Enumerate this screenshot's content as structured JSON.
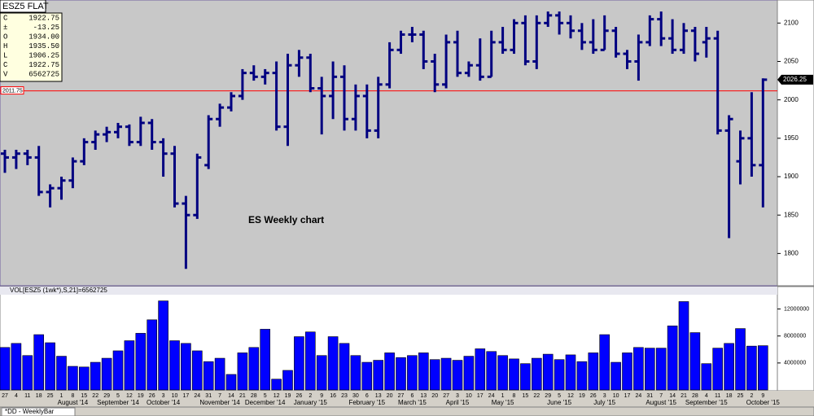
{
  "header": "ESZ5 FLAT",
  "info_box": [
    [
      "C",
      "1922.75"
    ],
    [
      "±",
      "-13.25"
    ],
    [
      "O",
      "1934.00"
    ],
    [
      "H",
      "1935.50"
    ],
    [
      "L",
      "1906.25"
    ],
    [
      "C",
      "1922.75"
    ],
    [
      "V",
      "6562725"
    ]
  ],
  "tab": "*DD - WeeklyBar",
  "chart_data": [
    {
      "type": "ohlc",
      "annotation": "ES Weekly chart",
      "color": "#000080",
      "ylim": [
        1758,
        2130
      ],
      "yticks": [
        1800,
        1850,
        1900,
        1950,
        2000,
        2050,
        2100
      ],
      "reference_line": {
        "value": 2011.75,
        "label": "2011.75",
        "color": "#ff0000"
      },
      "last_price": {
        "value": 2026.25,
        "label": "2026.25"
      },
      "categories": [
        "27",
        "4",
        "11",
        "18",
        "25",
        "1",
        "8",
        "15",
        "22",
        "29",
        "5",
        "12",
        "19",
        "26",
        "3",
        "10",
        "17",
        "24",
        "31",
        "7",
        "14",
        "21",
        "28",
        "5",
        "12",
        "19",
        "26",
        "2",
        "9",
        "16",
        "23",
        "30",
        "6",
        "13",
        "20",
        "27",
        "6",
        "13",
        "20",
        "27",
        "3",
        "10",
        "17",
        "24",
        "1",
        "8",
        "15",
        "22",
        "29",
        "5",
        "12",
        "19",
        "26",
        "3",
        "10",
        "17",
        "24",
        "31",
        "7",
        "14",
        "21",
        "28",
        "4",
        "11",
        "18",
        "25",
        "2",
        "9"
      ],
      "months": [
        null,
        null,
        null,
        null,
        null,
        null,
        "August '14",
        null,
        null,
        null,
        "September '14",
        null,
        null,
        null,
        "October '14",
        null,
        null,
        null,
        null,
        "November '14",
        null,
        null,
        null,
        "December '14",
        null,
        null,
        null,
        "January '15",
        null,
        null,
        null,
        null,
        "February '15",
        null,
        null,
        null,
        "March '15",
        null,
        null,
        null,
        "April '15",
        null,
        null,
        null,
        "May '15",
        null,
        null,
        null,
        null,
        "June '15",
        null,
        null,
        null,
        "July '15",
        null,
        null,
        null,
        null,
        "August '15",
        null,
        null,
        null,
        "September '15",
        null,
        null,
        null,
        null,
        "October '15",
        null
      ],
      "open": [
        1930,
        1925,
        1930,
        1925,
        1880,
        1885,
        1895,
        1920,
        1945,
        1955,
        1958,
        1965,
        1945,
        1970,
        1945,
        1930,
        1865,
        1850,
        1915,
        1975,
        1990,
        2005,
        2035,
        2030,
        2035,
        1965,
        2045,
        2055,
        2015,
        2005,
        2030,
        1975,
        2005,
        1960,
        2020,
        2065,
        2085,
        2085,
        2050,
        2020,
        2075,
        2035,
        2045,
        2030,
        2075,
        2065,
        2100,
        2050,
        2100,
        2110,
        2100,
        2090,
        2075,
        2065,
        2090,
        2060,
        2050,
        2075,
        2105,
        2080,
        2065,
        2090,
        2075,
        2080,
        1960,
        1920,
        1950,
        1915
      ],
      "high": [
        1935,
        1935,
        1935,
        1940,
        1890,
        1900,
        1925,
        1950,
        1960,
        1965,
        1970,
        1968,
        1978,
        1975,
        1950,
        1940,
        1875,
        1930,
        1980,
        1995,
        2010,
        2040,
        2045,
        2040,
        2050,
        2060,
        2065,
        2060,
        2030,
        2050,
        2045,
        2020,
        2020,
        2030,
        2075,
        2090,
        2095,
        2090,
        2060,
        2085,
        2090,
        2050,
        2080,
        2090,
        2095,
        2105,
        2110,
        2110,
        2115,
        2115,
        2110,
        2100,
        2105,
        2110,
        2095,
        2065,
        2085,
        2110,
        2115,
        2105,
        2100,
        2095,
        2095,
        2090,
        1980,
        1960,
        2010,
        2028
      ],
      "low": [
        1905,
        1910,
        1915,
        1875,
        1860,
        1870,
        1885,
        1915,
        1935,
        1945,
        1950,
        1940,
        1940,
        1935,
        1900,
        1860,
        1780,
        1845,
        1910,
        1965,
        1985,
        2000,
        2025,
        2020,
        1960,
        1940,
        2030,
        2010,
        1955,
        1975,
        1960,
        1960,
        1950,
        1950,
        2015,
        2060,
        2075,
        2040,
        2010,
        2015,
        2030,
        2030,
        2025,
        2030,
        2060,
        2060,
        2045,
        2040,
        2095,
        2085,
        2080,
        2065,
        2060,
        2065,
        2055,
        2040,
        2025,
        2070,
        2070,
        2060,
        2060,
        2050,
        2055,
        1955,
        1820,
        1890,
        1900,
        1860
      ],
      "close": [
        1925,
        1930,
        1925,
        1880,
        1885,
        1895,
        1920,
        1945,
        1955,
        1958,
        1965,
        1945,
        1970,
        1945,
        1930,
        1865,
        1850,
        1925,
        1975,
        1990,
        2005,
        2035,
        2030,
        2035,
        1965,
        2045,
        2055,
        2015,
        2005,
        2030,
        1975,
        2005,
        1960,
        2020,
        2065,
        2085,
        2085,
        2050,
        2020,
        2075,
        2035,
        2045,
        2030,
        2075,
        2065,
        2100,
        2050,
        2100,
        2110,
        2100,
        2090,
        2075,
        2065,
        2090,
        2060,
        2050,
        2075,
        2105,
        2080,
        2065,
        2090,
        2060,
        2080,
        1960,
        1975,
        1950,
        1915,
        2026.25
      ]
    },
    {
      "type": "bar",
      "title": "VOL[ESZ5 (1wk*),S,21]=6562725",
      "color": "#0000ff",
      "ylim": [
        0,
        14000000
      ],
      "yticks": [
        4000000,
        8000000,
        12000000
      ],
      "values": [
        6300000,
        6900000,
        5100000,
        8200000,
        7000000,
        5000000,
        3500000,
        3400000,
        4100000,
        4700000,
        5800000,
        7300000,
        8400000,
        10400000,
        13200000,
        7300000,
        6900000,
        5800000,
        4200000,
        4700000,
        2300000,
        5500000,
        6300000,
        9000000,
        1600000,
        2900000,
        7900000,
        8600000,
        5100000,
        7900000,
        6900000,
        5100000,
        4100000,
        4400000,
        5500000,
        4800000,
        5100000,
        5500000,
        4500000,
        4700000,
        4400000,
        5000000,
        6100000,
        5700000,
        5100000,
        4600000,
        3900000,
        4700000,
        5300000,
        4500000,
        5200000,
        4200000,
        5500000,
        8200000,
        4100000,
        5500000,
        6300000,
        6200000,
        6200000,
        9500000,
        13100000,
        8500000,
        3900000,
        6200000,
        6900000,
        9100000,
        6500000,
        6562725
      ]
    }
  ]
}
